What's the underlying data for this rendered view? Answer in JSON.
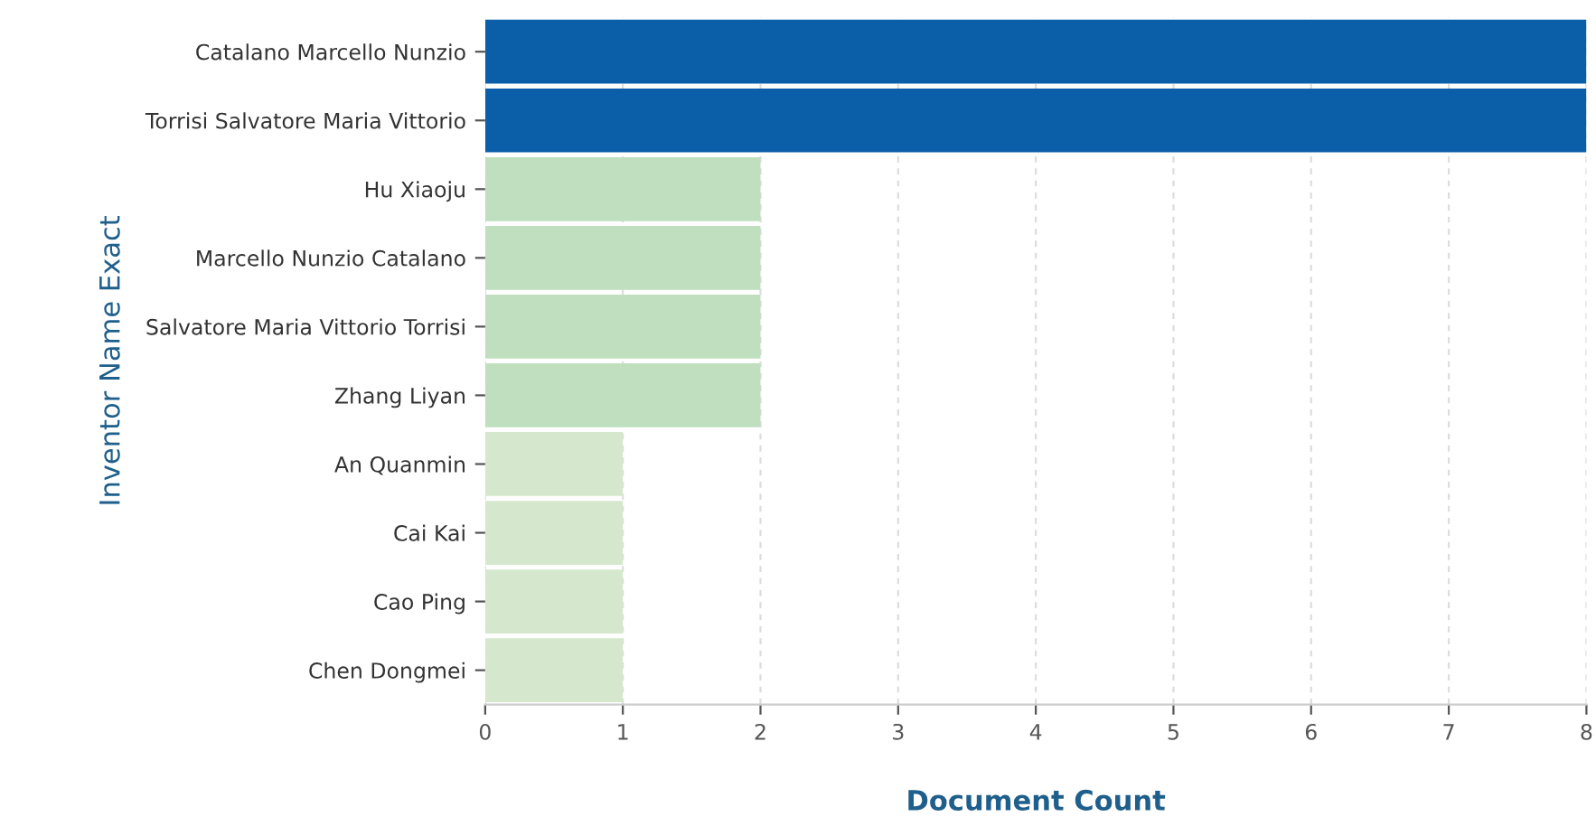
{
  "chart_data": {
    "type": "bar",
    "orientation": "horizontal",
    "xlabel": "Document Count",
    "ylabel": "Inventor Name Exact",
    "categories": [
      "Catalano Marcello Nunzio",
      "Torrisi Salvatore Maria Vittorio",
      "Hu Xiaoju",
      "Marcello Nunzio Catalano",
      "Salvatore Maria Vittorio Torrisi",
      "Zhang Liyan",
      "An Quanmin",
      "Cai Kai",
      "Cao Ping",
      "Chen Dongmei"
    ],
    "values": [
      8,
      8,
      2,
      2,
      2,
      2,
      1,
      1,
      1,
      1
    ],
    "colors": [
      "#0b5ea8",
      "#0b5ea8",
      "#bfdfbf",
      "#bfdfbf",
      "#bfdfbf",
      "#bfdfbf",
      "#d5e8cd",
      "#d5e8cd",
      "#d5e8cd",
      "#d5e8cd"
    ],
    "xlim": [
      0,
      8
    ],
    "xticks": [
      0,
      1,
      2,
      3,
      4,
      5,
      6,
      7,
      8
    ],
    "grid": "x"
  }
}
